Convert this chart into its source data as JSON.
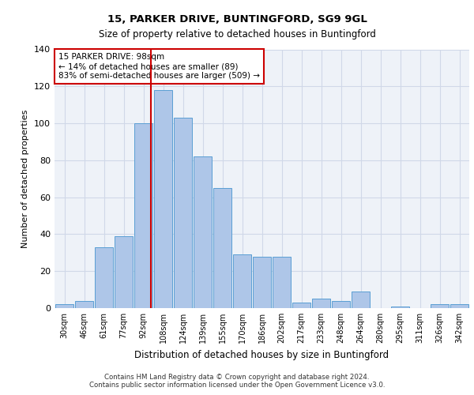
{
  "title1": "15, PARKER DRIVE, BUNTINGFORD, SG9 9GL",
  "title2": "Size of property relative to detached houses in Buntingford",
  "xlabel": "Distribution of detached houses by size in Buntingford",
  "ylabel": "Number of detached properties",
  "bar_labels": [
    "30sqm",
    "46sqm",
    "61sqm",
    "77sqm",
    "92sqm",
    "108sqm",
    "124sqm",
    "139sqm",
    "155sqm",
    "170sqm",
    "186sqm",
    "202sqm",
    "217sqm",
    "233sqm",
    "248sqm",
    "264sqm",
    "280sqm",
    "295sqm",
    "311sqm",
    "326sqm",
    "342sqm"
  ],
  "bar_values": [
    2,
    4,
    33,
    39,
    100,
    118,
    103,
    82,
    65,
    29,
    28,
    28,
    3,
    5,
    4,
    9,
    0,
    1,
    0,
    2,
    2
  ],
  "bar_color": "#aec6e8",
  "bar_edge_color": "#5a9fd4",
  "annotation_line1": "15 PARKER DRIVE: 98sqm",
  "annotation_line2": "← 14% of detached houses are smaller (89)",
  "annotation_line3": "83% of semi-detached houses are larger (509) →",
  "annotation_box_color": "#cc0000",
  "vline_x": 4.375,
  "vline_color": "#cc0000",
  "grid_color": "#d0d8e8",
  "background_color": "#eef2f8",
  "footer_text": "Contains HM Land Registry data © Crown copyright and database right 2024.\nContains public sector information licensed under the Open Government Licence v3.0.",
  "ylim": [
    0,
    140
  ],
  "yticks": [
    0,
    20,
    40,
    60,
    80,
    100,
    120,
    140
  ]
}
